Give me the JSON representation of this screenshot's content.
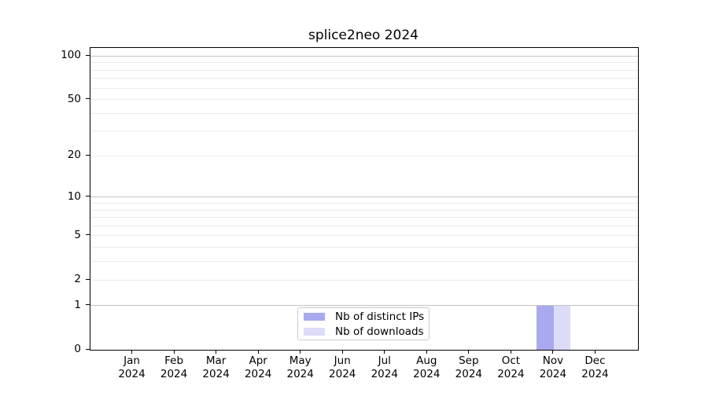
{
  "figure": {
    "title": "splice2neo 2024",
    "background_color": "#ffffff"
  },
  "chart_data": {
    "type": "bar",
    "title": "splice2neo 2024",
    "categories": [
      "Jan 2024",
      "Feb 2024",
      "Mar 2024",
      "Apr 2024",
      "May 2024",
      "Jun 2024",
      "Jul 2024",
      "Aug 2024",
      "Sep 2024",
      "Oct 2024",
      "Nov 2024",
      "Dec 2024"
    ],
    "series": [
      {
        "name": "Nb of distinct IPs",
        "color": "#a9a9f0",
        "values": [
          0,
          0,
          0,
          0,
          0,
          0,
          0,
          0,
          0,
          0,
          1,
          0
        ]
      },
      {
        "name": "Nb of downloads",
        "color": "#dcdcf8",
        "values": [
          0,
          0,
          0,
          0,
          0,
          0,
          0,
          0,
          0,
          0,
          1,
          0
        ]
      }
    ],
    "xlabel": "",
    "ylabel": "",
    "yscale": "log1p",
    "ylim": [
      0,
      113.5
    ],
    "yticks": [
      0,
      1,
      2,
      5,
      10,
      20,
      50,
      100
    ],
    "grid": {
      "major": [
        1,
        10,
        100
      ],
      "minor": [
        2,
        3,
        4,
        5,
        6,
        7,
        8,
        9,
        20,
        30,
        40,
        50,
        60,
        70,
        80,
        90
      ]
    },
    "legend_position": "bottom-center"
  },
  "colors": {
    "axis": "#000000",
    "grid_major": "#c4c4c4",
    "grid_minor": "#ebebeb",
    "legend_border": "#cccccc"
  }
}
